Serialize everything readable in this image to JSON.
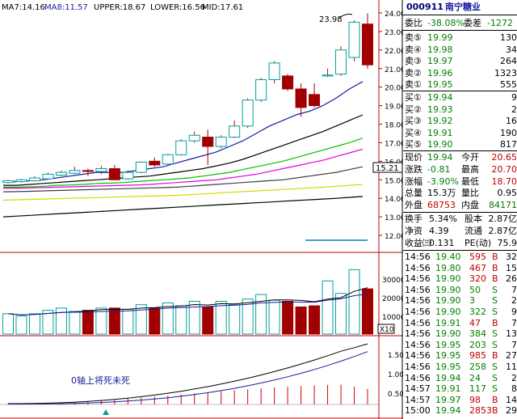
{
  "indicators": {
    "ma7": "MA7:14.16",
    "ma8": "MA8:11.57",
    "upper": "UPPER:18.67",
    "lower": "LOWER:16.56",
    "mid": "MID:17.61"
  },
  "price_axis": [
    "24.00",
    "23.00",
    "22.00",
    "21.00",
    "20.00",
    "19.00",
    "18.00",
    "17.00",
    "16.00",
    "15.00",
    "14.00",
    "13.00",
    "12.00"
  ],
  "current_price_tag": "15.21",
  "peak_label": "23.98",
  "volume_axis": [
    "30000",
    "20000",
    "10000"
  ],
  "volume_unit": "X10",
  "macd_axis": [
    "1.50",
    "1.00",
    "0.50"
  ],
  "annotation": "0轴上将死未死",
  "colors": {
    "up": "#d40000",
    "down": "#008000",
    "candle_fill_down": "#a00000",
    "ma_blue": "#1a1aa0",
    "cyan": "#00a0a0"
  },
  "chart_data": {
    "type": "candlestick",
    "ylim": [
      11.2,
      24.5
    ],
    "candles": [
      {
        "o": 14.85,
        "h": 15.0,
        "l": 14.8,
        "c": 14.95
      },
      {
        "o": 14.9,
        "h": 15.05,
        "l": 14.85,
        "c": 15.0
      },
      {
        "o": 14.95,
        "h": 15.2,
        "l": 14.9,
        "c": 15.1
      },
      {
        "o": 15.05,
        "h": 15.4,
        "l": 15.0,
        "c": 15.3
      },
      {
        "o": 15.25,
        "h": 15.5,
        "l": 15.2,
        "c": 15.4
      },
      {
        "o": 15.35,
        "h": 15.7,
        "l": 15.3,
        "c": 15.5
      },
      {
        "o": 15.5,
        "h": 15.6,
        "l": 15.2,
        "c": 15.45
      },
      {
        "o": 15.45,
        "h": 15.75,
        "l": 15.3,
        "c": 15.6
      },
      {
        "o": 15.6,
        "h": 15.8,
        "l": 15.0,
        "c": 15.0
      },
      {
        "o": 15.05,
        "h": 15.5,
        "l": 15.0,
        "c": 15.4
      },
      {
        "o": 15.4,
        "h": 16.0,
        "l": 15.35,
        "c": 15.95
      },
      {
        "o": 16.0,
        "h": 16.2,
        "l": 15.7,
        "c": 15.8
      },
      {
        "o": 15.85,
        "h": 16.4,
        "l": 15.8,
        "c": 16.35
      },
      {
        "o": 16.35,
        "h": 17.2,
        "l": 16.3,
        "c": 17.1
      },
      {
        "o": 17.1,
        "h": 17.6,
        "l": 17.0,
        "c": 17.4
      },
      {
        "o": 17.3,
        "h": 17.7,
        "l": 15.8,
        "c": 16.8
      },
      {
        "o": 16.8,
        "h": 17.4,
        "l": 16.7,
        "c": 17.3
      },
      {
        "o": 17.3,
        "h": 18.2,
        "l": 17.25,
        "c": 17.9
      },
      {
        "o": 17.9,
        "h": 19.4,
        "l": 17.8,
        "c": 19.3
      },
      {
        "o": 19.3,
        "h": 20.5,
        "l": 19.2,
        "c": 20.4
      },
      {
        "o": 20.4,
        "h": 21.4,
        "l": 20.2,
        "c": 21.3
      },
      {
        "o": 20.6,
        "h": 20.7,
        "l": 19.8,
        "c": 19.9
      },
      {
        "o": 19.9,
        "h": 20.2,
        "l": 18.4,
        "c": 18.9
      },
      {
        "o": 19.6,
        "h": 20.2,
        "l": 18.9,
        "c": 19.0
      },
      {
        "o": 20.6,
        "h": 21.0,
        "l": 20.55,
        "c": 20.65
      },
      {
        "o": 20.7,
        "h": 22.2,
        "l": 20.6,
        "c": 22.0
      },
      {
        "o": 21.6,
        "h": 23.6,
        "l": 21.4,
        "c": 23.5
      },
      {
        "o": 23.4,
        "h": 23.98,
        "l": 21.0,
        "c": 21.2
      }
    ],
    "ma_lines": [
      {
        "color": "#1a1aa0",
        "values": [
          14.9,
          14.9,
          14.95,
          15.0,
          15.1,
          15.2,
          15.3,
          15.4,
          15.4,
          15.4,
          15.5,
          15.6,
          15.7,
          15.9,
          16.1,
          16.3,
          16.5,
          16.8,
          17.1,
          17.5,
          17.9,
          18.2,
          18.5,
          18.7,
          19.0,
          19.4,
          19.9,
          20.3
        ]
      },
      {
        "color": "#000000",
        "values": [
          14.7,
          14.7,
          14.75,
          14.8,
          14.85,
          14.9,
          14.95,
          15.0,
          15.05,
          15.1,
          15.15,
          15.2,
          15.3,
          15.4,
          15.5,
          15.6,
          15.75,
          15.9,
          16.1,
          16.35,
          16.6,
          16.85,
          17.1,
          17.35,
          17.6,
          17.9,
          18.2,
          18.5
        ]
      },
      {
        "color": "#00c000",
        "values": [
          14.6,
          14.6,
          14.62,
          14.65,
          14.7,
          14.72,
          14.75,
          14.8,
          14.82,
          14.85,
          14.9,
          14.95,
          15.0,
          15.05,
          15.1,
          15.2,
          15.3,
          15.4,
          15.55,
          15.7,
          15.85,
          16.0,
          16.2,
          16.4,
          16.6,
          16.8,
          17.0,
          17.25
        ]
      },
      {
        "color": "#e000e0",
        "values": [
          14.55,
          14.55,
          14.56,
          14.58,
          14.6,
          14.62,
          14.64,
          14.66,
          14.68,
          14.7,
          14.72,
          14.75,
          14.8,
          14.85,
          14.9,
          14.95,
          15.0,
          15.1,
          15.2,
          15.3,
          15.45,
          15.6,
          15.75,
          15.9,
          16.05,
          16.25,
          16.45,
          16.65
        ]
      },
      {
        "color": "#404040",
        "values": [
          14.35,
          14.36,
          14.38,
          14.4,
          14.42,
          14.44,
          14.46,
          14.48,
          14.5,
          14.52,
          14.54,
          14.56,
          14.58,
          14.6,
          14.65,
          14.7,
          14.75,
          14.8,
          14.85,
          14.9,
          14.95,
          15.0,
          15.1,
          15.2,
          15.3,
          15.4,
          15.55,
          15.7
        ]
      },
      {
        "color": "#d8d800",
        "values": [
          13.9,
          13.92,
          13.94,
          13.96,
          13.98,
          14.0,
          14.02,
          14.04,
          14.06,
          14.08,
          14.1,
          14.12,
          14.14,
          14.16,
          14.2,
          14.24,
          14.28,
          14.32,
          14.36,
          14.4,
          14.44,
          14.48,
          14.52,
          14.56,
          14.6,
          14.65,
          14.7,
          14.75
        ]
      },
      {
        "color": "#000000",
        "values": [
          13.0,
          13.04,
          13.08,
          13.12,
          13.16,
          13.2,
          13.24,
          13.28,
          13.32,
          13.36,
          13.4,
          13.44,
          13.48,
          13.52,
          13.56,
          13.6,
          13.64,
          13.68,
          13.72,
          13.76,
          13.8,
          13.84,
          13.88,
          13.92,
          13.96,
          14.0,
          14.05,
          14.1
        ]
      }
    ],
    "volume": [
      9000,
      8000,
      9000,
      10500,
      11500,
      10000,
      10500,
      11500,
      11500,
      11000,
      13000,
      11500,
      13800,
      12500,
      14500,
      12000,
      14500,
      13000,
      15500,
      17500,
      15000,
      14500,
      12000,
      12500,
      23500,
      18000,
      28500,
      20000
    ]
  },
  "quote": {
    "code": "000911",
    "name": "南宁糖业",
    "wei_bi_label": "委比",
    "wei_bi": "-38.08%",
    "wei_cha_label": "委差",
    "wei_cha": "-1272",
    "asks": [
      {
        "label": "卖⑤",
        "price": "19.99",
        "vol": "130"
      },
      {
        "label": "卖④",
        "price": "19.98",
        "vol": "34"
      },
      {
        "label": "卖③",
        "price": "19.97",
        "vol": "264"
      },
      {
        "label": "卖②",
        "price": "19.96",
        "vol": "1323"
      },
      {
        "label": "卖①",
        "price": "19.95",
        "vol": "555"
      }
    ],
    "bids": [
      {
        "label": "买①",
        "price": "19.94",
        "vol": "9"
      },
      {
        "label": "买②",
        "price": "19.93",
        "vol": "2"
      },
      {
        "label": "买③",
        "price": "19.92",
        "vol": "16"
      },
      {
        "label": "买④",
        "price": "19.91",
        "vol": "190"
      },
      {
        "label": "买⑤",
        "price": "19.90",
        "vol": "817"
      }
    ],
    "stats": [
      {
        "l1": "现价",
        "v1": "19.94",
        "l2": "今开",
        "v2": "20.65"
      },
      {
        "l1": "涨跌",
        "v1": "-0.81",
        "l2": "最高",
        "v2": "20.70"
      },
      {
        "l1": "涨幅",
        "v1": "-3.90%",
        "l2": "最低",
        "v2": "18.70"
      },
      {
        "l1": "总量",
        "v1": "15.3万",
        "l2": "量比",
        "v2": "0.95"
      },
      {
        "l1": "外盘",
        "v1": "68753",
        "l2": "内盘",
        "v2": "84171"
      }
    ],
    "stats2": [
      {
        "l1": "换手",
        "v1": "5.34%",
        "l2": "股本",
        "v2": "2.87亿"
      },
      {
        "l1": "净资",
        "v1": "4.39",
        "l2": "流通",
        "v2": "2.87亿"
      },
      {
        "l1": "收益㈢",
        "v1": "0.131",
        "l2": "PE(动)",
        "v2": "75.9"
      }
    ],
    "ticks": [
      {
        "t": "14:56",
        "p": "19.40",
        "v": "595",
        "d": "B",
        "n": "32"
      },
      {
        "t": "14:56",
        "p": "19.80",
        "v": "467",
        "d": "B",
        "n": "15"
      },
      {
        "t": "14:56",
        "p": "19.90",
        "v": "320",
        "d": "B",
        "n": "26"
      },
      {
        "t": "14:56",
        "p": "19.90",
        "v": "50",
        "d": "S",
        "n": "7"
      },
      {
        "t": "14:56",
        "p": "19.90",
        "v": "3",
        "d": "S",
        "n": "2"
      },
      {
        "t": "14:56",
        "p": "19.90",
        "v": "322",
        "d": "S",
        "n": "9"
      },
      {
        "t": "14:56",
        "p": "19.91",
        "v": "47",
        "d": "B",
        "n": "7"
      },
      {
        "t": "14:56",
        "p": "19.90",
        "v": "384",
        "d": "S",
        "n": "13"
      },
      {
        "t": "14:56",
        "p": "19.95",
        "v": "203",
        "d": "S",
        "n": "7"
      },
      {
        "t": "14:56",
        "p": "19.95",
        "v": "985",
        "d": "B",
        "n": "27"
      },
      {
        "t": "14:56",
        "p": "19.95",
        "v": "258",
        "d": "S",
        "n": "11"
      },
      {
        "t": "14:56",
        "p": "19.94",
        "v": "24",
        "d": "S",
        "n": "2"
      },
      {
        "t": "14:57",
        "p": "19.91",
        "v": "117",
        "d": "S",
        "n": "8"
      },
      {
        "t": "14:57",
        "p": "19.97",
        "v": "98",
        "d": "B",
        "n": "14"
      },
      {
        "t": "15:00",
        "p": "19.94",
        "v": "2853",
        "d": "B",
        "n": "29"
      }
    ]
  }
}
